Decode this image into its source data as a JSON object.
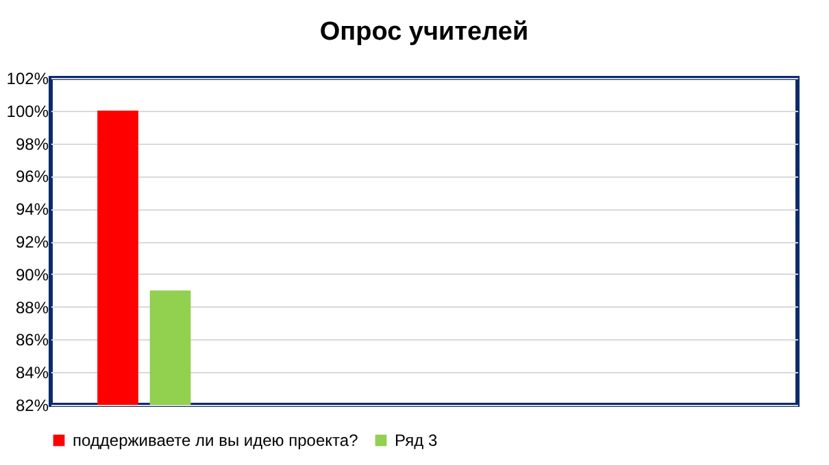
{
  "chart_data": {
    "type": "bar",
    "title": "Опрос учителей",
    "categories": [
      null,
      null,
      null,
      null
    ],
    "series": [
      {
        "name": "поддерживаете ли вы идею проекта?",
        "color": "#ff0000",
        "values": [
          100,
          null,
          null,
          null
        ]
      },
      {
        "name": "Ряд 3",
        "color": "#92d050",
        "values": [
          89,
          null,
          null,
          null
        ]
      }
    ],
    "ylim": [
      82,
      102
    ],
    "yticks": [
      {
        "value": 82,
        "label": "82%"
      },
      {
        "value": 84,
        "label": "84%"
      },
      {
        "value": 86,
        "label": "86%"
      },
      {
        "value": 88,
        "label": "88%"
      },
      {
        "value": 90,
        "label": "90%"
      },
      {
        "value": 92,
        "label": "92%"
      },
      {
        "value": 94,
        "label": "94%"
      },
      {
        "value": 96,
        "label": "96%"
      },
      {
        "value": 98,
        "label": "98%"
      },
      {
        "value": 100,
        "label": "100%"
      },
      {
        "value": 102,
        "label": "102%"
      }
    ],
    "grid": "y",
    "legend": "bottom"
  }
}
